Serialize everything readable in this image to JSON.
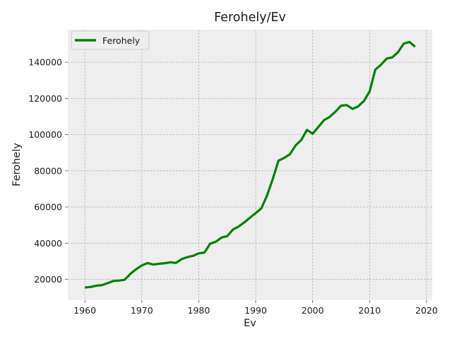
{
  "chart_data": {
    "type": "line",
    "title": "Ferohely/Ev",
    "xlabel": "Ev",
    "ylabel": "Ferohely",
    "xlim": [
      1957,
      2021
    ],
    "ylim": [
      8500,
      158000
    ],
    "xticks": [
      1960,
      1970,
      1980,
      1990,
      2000,
      2010,
      2020
    ],
    "yticks": [
      20000,
      40000,
      60000,
      80000,
      100000,
      120000,
      140000
    ],
    "grid": true,
    "legend_position": "top-left",
    "series": [
      {
        "name": "Ferohely",
        "color": "#008000",
        "x": [
          1960,
          1961,
          1962,
          1963,
          1964,
          1965,
          1966,
          1967,
          1968,
          1969,
          1970,
          1971,
          1972,
          1973,
          1974,
          1975,
          1976,
          1977,
          1978,
          1979,
          1980,
          1981,
          1982,
          1983,
          1984,
          1985,
          1986,
          1987,
          1988,
          1989,
          1990,
          1991,
          1992,
          1993,
          1994,
          1995,
          1996,
          1997,
          1998,
          1999,
          2000,
          2001,
          2002,
          2003,
          2004,
          2005,
          2006,
          2007,
          2008,
          2009,
          2010,
          2011,
          2012,
          2013,
          2014,
          2015,
          2016,
          2017,
          2018
        ],
        "y": [
          15500,
          15800,
          16500,
          16800,
          17900,
          19100,
          19300,
          19800,
          23100,
          25600,
          27700,
          29000,
          28200,
          28600,
          28900,
          29400,
          29100,
          31200,
          32300,
          33000,
          34400,
          34800,
          39700,
          40800,
          43100,
          43900,
          47500,
          49200,
          51500,
          54100,
          56600,
          59300,
          66400,
          75500,
          85600,
          87100,
          89100,
          94000,
          97000,
          102600,
          100500,
          104200,
          108000,
          109800,
          112700,
          116000,
          116300,
          114200,
          115600,
          118600,
          123800,
          135900,
          138600,
          142000,
          142700,
          145600,
          150300,
          151200,
          148600
        ]
      }
    ]
  }
}
